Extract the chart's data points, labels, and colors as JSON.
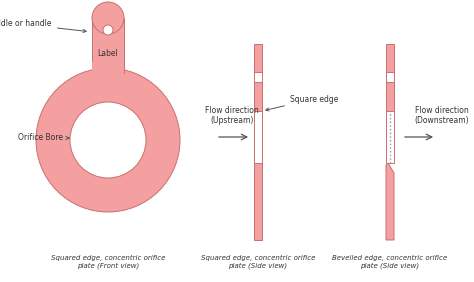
{
  "bg_color": "#ffffff",
  "plate_color": "#f4a0a0",
  "plate_edge_color": "#c87070",
  "white_gap": "#ffffff",
  "text_color": "#333333",
  "arrow_color": "#555555",
  "font_size_label": 5.5,
  "font_size_caption": 5.0,
  "annotations": {
    "paddle_or_handle": "Paddle or handle",
    "orifice_bore": "Orifice Bore",
    "label_text": "Label",
    "flow_upstream": "Flow direction\n(Upstream)",
    "flow_downstream": "Flow direction\n(Downstream)",
    "square_edge": "Square edge",
    "caption1": "Squared edge, concentric orifice\nplate (Front view)",
    "caption2": "Squared edge, concentric orifice\nplate (Side view)",
    "caption3": "Bevelled edge, concentric orifice\nplate (Side view)"
  }
}
